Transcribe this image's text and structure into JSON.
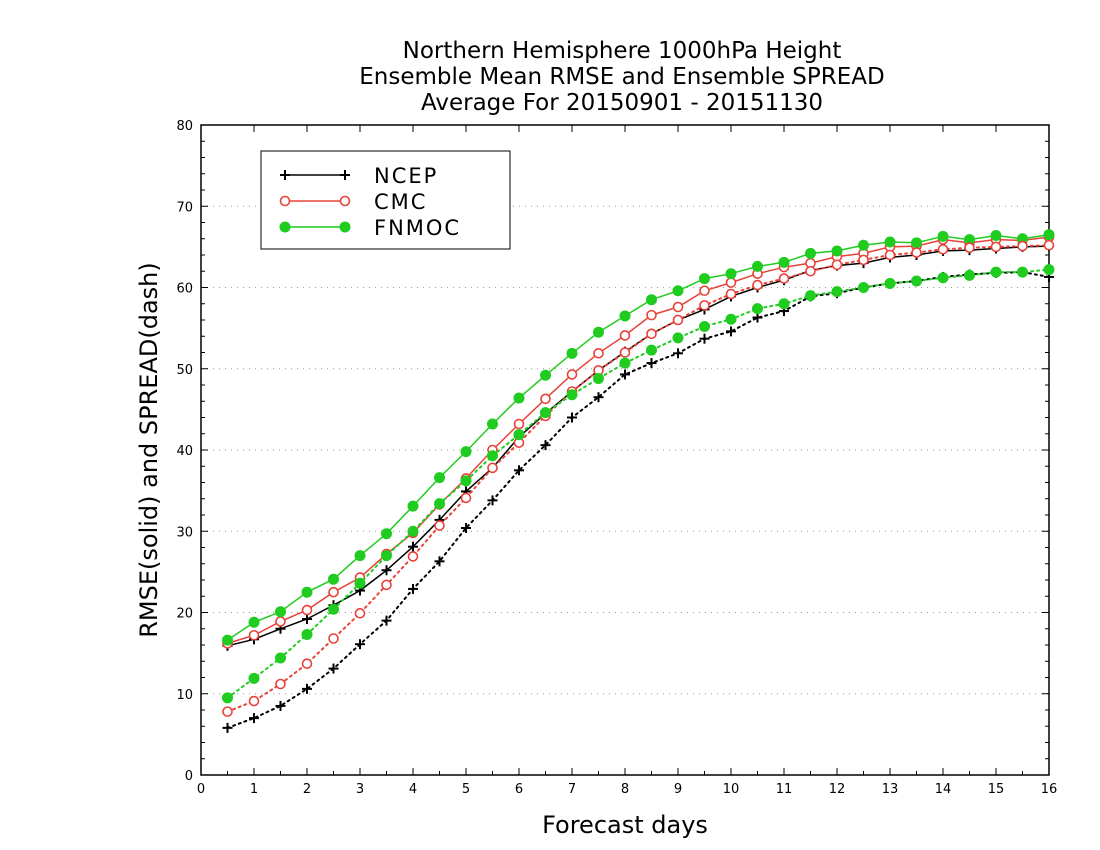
{
  "chart_data": {
    "type": "line",
    "title": [
      "Northern Hemisphere 1000hPa Height",
      "Ensemble Mean RMSE and Ensemble SPREAD",
      "Average For 20150901 - 20151130"
    ],
    "xlabel": "Forecast days",
    "ylabel": "RMSE(solid) and SPREAD(dash)",
    "xlim": [
      0,
      16
    ],
    "ylim": [
      0,
      80
    ],
    "xticks": [
      "0",
      "1",
      "2",
      "3",
      "4",
      "5",
      "6",
      "7",
      "8",
      "9",
      "10",
      "11",
      "12",
      "13",
      "14",
      "15",
      "16"
    ],
    "yticks": [
      "0",
      "10",
      "20",
      "30",
      "40",
      "50",
      "60",
      "70",
      "80"
    ],
    "grid": "horizontal dotted",
    "legend_position": "top-left",
    "x": [
      0.5,
      1,
      1.5,
      2,
      2.5,
      3,
      3.5,
      4,
      4.5,
      5,
      5.5,
      6,
      6.5,
      7,
      7.5,
      8,
      8.5,
      9,
      9.5,
      10,
      10.5,
      11,
      11.5,
      12,
      12.5,
      13,
      13.5,
      14,
      14.5,
      15,
      15.5,
      16
    ],
    "series": [
      {
        "name": "NCEP",
        "metric": "RMSE",
        "style": "solid",
        "marker": "plus",
        "color": "#000000",
        "values": [
          15.9,
          16.7,
          18.0,
          19.2,
          20.9,
          22.7,
          25.2,
          28.1,
          31.4,
          34.9,
          37.8,
          41.6,
          44.5,
          47.2,
          49.8,
          52.1,
          54.3,
          56.0,
          57.3,
          58.9,
          60.0,
          60.9,
          62.1,
          62.7,
          63.0,
          63.7,
          64.0,
          64.5,
          64.6,
          64.8,
          65.0,
          65.1
        ]
      },
      {
        "name": "CMC",
        "metric": "RMSE",
        "style": "solid",
        "marker": "open-circle",
        "color": "#e8423a",
        "values": [
          16.2,
          17.2,
          18.9,
          20.3,
          22.5,
          24.3,
          27.2,
          29.8,
          33.3,
          36.5,
          40.0,
          43.2,
          46.3,
          49.3,
          51.9,
          54.1,
          56.6,
          57.6,
          59.6,
          60.6,
          61.7,
          62.5,
          63.0,
          63.8,
          64.2,
          65.0,
          65.1,
          65.9,
          65.5,
          65.9,
          65.8,
          66.2
        ]
      },
      {
        "name": "FNMOC",
        "metric": "RMSE",
        "style": "solid",
        "marker": "filled-circle",
        "color": "#1fcc1f",
        "values": [
          16.6,
          18.8,
          20.1,
          22.5,
          24.1,
          27.0,
          29.7,
          33.1,
          36.6,
          39.8,
          43.2,
          46.4,
          49.2,
          51.9,
          54.5,
          56.5,
          58.5,
          59.6,
          61.1,
          61.7,
          62.6,
          63.1,
          64.2,
          64.5,
          65.2,
          65.6,
          65.5,
          66.3,
          65.9,
          66.4,
          66.0,
          66.5
        ]
      },
      {
        "name": "NCEP",
        "metric": "SPREAD",
        "style": "dotted",
        "marker": "plus",
        "color": "#000000",
        "values": [
          5.8,
          7.0,
          8.5,
          10.6,
          13.1,
          16.1,
          19.0,
          22.9,
          26.3,
          30.4,
          33.8,
          37.5,
          40.6,
          44.0,
          46.5,
          49.3,
          50.7,
          51.9,
          53.7,
          54.6,
          56.3,
          57.1,
          58.9,
          59.3,
          60.0,
          60.5,
          60.8,
          61.3,
          61.6,
          61.8,
          61.9,
          61.3
        ]
      },
      {
        "name": "CMC",
        "metric": "SPREAD",
        "style": "dotted",
        "marker": "open-circle",
        "color": "#e8423a",
        "values": [
          7.8,
          9.1,
          11.2,
          13.7,
          16.8,
          19.9,
          23.4,
          26.9,
          30.7,
          34.1,
          37.8,
          40.9,
          44.2,
          47.2,
          49.8,
          52.0,
          54.3,
          56.0,
          57.8,
          59.2,
          60.3,
          61.1,
          62.0,
          62.8,
          63.4,
          64.0,
          64.3,
          64.7,
          64.9,
          65.0,
          65.1,
          65.2
        ]
      },
      {
        "name": "FNMOC",
        "metric": "SPREAD",
        "style": "dotted",
        "marker": "filled-circle",
        "color": "#1fcc1f",
        "values": [
          9.5,
          11.9,
          14.4,
          17.3,
          20.4,
          23.6,
          27.0,
          30.0,
          33.4,
          36.2,
          39.3,
          41.9,
          44.6,
          46.8,
          48.8,
          50.7,
          52.3,
          53.8,
          55.2,
          56.1,
          57.4,
          58.0,
          59.0,
          59.5,
          60.0,
          60.5,
          60.8,
          61.2,
          61.5,
          61.9,
          61.9,
          62.2
        ]
      }
    ],
    "legend": [
      {
        "label": "NCEP",
        "marker": "plus",
        "color": "#000000"
      },
      {
        "label": "CMC",
        "marker": "open-circle",
        "color": "#e8423a"
      },
      {
        "label": "FNMOC",
        "marker": "filled-circle",
        "color": "#1fcc1f"
      }
    ]
  }
}
